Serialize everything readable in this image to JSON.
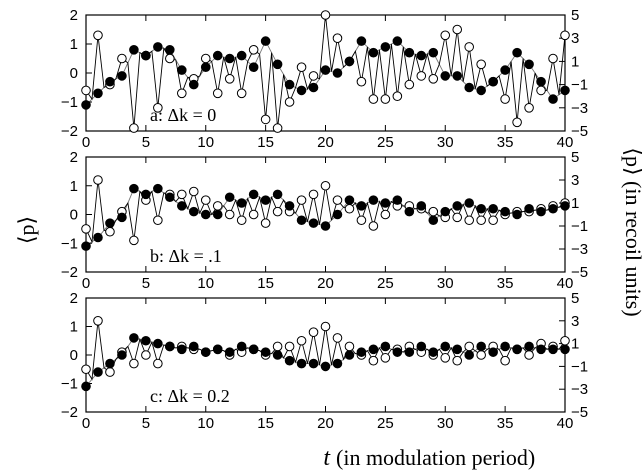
{
  "chart_data": {
    "type": "line",
    "xlabel_symbol": "t",
    "xlabel": "(in modulation period)",
    "ylabel_left": "⟨p⟩",
    "ylabel_right": "⟨p⟩ (in recoil units)",
    "xlim": [
      0,
      40
    ],
    "x_ticks": [
      0,
      5,
      10,
      15,
      20,
      25,
      30,
      35,
      40
    ],
    "grid": false,
    "legend": "none",
    "panels": [
      {
        "label_prefix": "a:",
        "label_math": "Δk = 0",
        "ylim_left": [
          -2,
          2
        ],
        "yticks_left": [
          -2,
          -1,
          0,
          1,
          2
        ],
        "ylim_right": [
          -5,
          5
        ],
        "yticks_right": [
          -5,
          -3,
          -1,
          1,
          3,
          5
        ],
        "series": [
          {
            "marker": "open",
            "x": [
              0,
              1,
              2,
              3,
              4,
              5,
              6,
              7,
              8,
              9,
              10,
              11,
              12,
              13,
              14,
              15,
              16,
              17,
              18,
              19,
              20,
              21,
              22,
              23,
              24,
              25,
              26,
              27,
              28,
              29,
              30,
              31,
              32,
              33,
              34,
              35,
              36,
              37,
              38,
              39,
              40
            ],
            "y": [
              -0.6,
              1.3,
              -0.4,
              0.5,
              -1.9,
              0.6,
              -1.2,
              0.5,
              -0.7,
              -0.2,
              0.5,
              -0.7,
              -0.2,
              -0.7,
              0.8,
              -1.6,
              -1.9,
              -1.0,
              0.2,
              -0.1,
              2.0,
              1.2,
              0.4,
              -0.3,
              -0.9,
              -0.9,
              -0.8,
              -0.4,
              -0.1,
              -0.2,
              1.3,
              1.5,
              0.9,
              0.3,
              -0.3,
              -0.9,
              -1.7,
              -1.2,
              -0.6,
              0.5,
              1.3
            ]
          },
          {
            "marker": "filled",
            "x": [
              0,
              1,
              2,
              3,
              4,
              5,
              6,
              7,
              8,
              9,
              10,
              11,
              12,
              13,
              14,
              15,
              16,
              17,
              18,
              19,
              20,
              21,
              22,
              23,
              24,
              25,
              26,
              27,
              28,
              29,
              30,
              31,
              32,
              33,
              34,
              35,
              36,
              37,
              38,
              39,
              40
            ],
            "y": [
              -1.1,
              -0.7,
              -0.3,
              -0.1,
              0.8,
              0.6,
              0.9,
              0.8,
              0.1,
              -0.4,
              0.2,
              0.6,
              0.5,
              0.6,
              0.2,
              1.1,
              0.3,
              -0.4,
              -0.6,
              -0.5,
              0.1,
              0.0,
              0.4,
              1.1,
              0.7,
              0.9,
              1.1,
              0.7,
              0.6,
              0.7,
              -0.1,
              -0.1,
              -0.5,
              -0.6,
              -0.3,
              0.1,
              0.7,
              0.3,
              -0.3,
              -0.9,
              -0.6
            ]
          }
        ]
      },
      {
        "label_prefix": "b:",
        "label_math": "Δk = .1",
        "ylim_left": [
          -2,
          2
        ],
        "yticks_left": [
          -2,
          -1,
          0,
          1,
          2
        ],
        "ylim_right": [
          -5,
          5
        ],
        "yticks_right": [
          -5,
          -3,
          -1,
          1,
          3,
          5
        ],
        "series": [
          {
            "marker": "open",
            "x": [
              0,
              1,
              2,
              3,
              4,
              5,
              6,
              7,
              8,
              9,
              10,
              11,
              12,
              13,
              14,
              15,
              16,
              17,
              18,
              19,
              20,
              21,
              22,
              23,
              24,
              25,
              26,
              27,
              28,
              29,
              30,
              31,
              32,
              33,
              34,
              35,
              36,
              37,
              38,
              39,
              40
            ],
            "y": [
              -0.5,
              1.2,
              -0.6,
              0.1,
              -0.9,
              0.5,
              -0.2,
              0.7,
              0.7,
              0.8,
              0.5,
              0.3,
              0.0,
              -0.2,
              0.0,
              -0.3,
              0.1,
              0.1,
              0.5,
              0.7,
              1.0,
              0.5,
              0.2,
              -0.2,
              -0.4,
              0.0,
              0.3,
              0.3,
              0.2,
              0.1,
              -0.1,
              -0.1,
              -0.2,
              -0.2,
              -0.2,
              0.0,
              0.1,
              0.1,
              0.2,
              0.3,
              0.4
            ]
          },
          {
            "marker": "filled",
            "x": [
              0,
              1,
              2,
              3,
              4,
              5,
              6,
              7,
              8,
              9,
              10,
              11,
              12,
              13,
              14,
              15,
              16,
              17,
              18,
              19,
              20,
              21,
              22,
              23,
              24,
              25,
              26,
              27,
              28,
              29,
              30,
              31,
              32,
              33,
              34,
              35,
              36,
              37,
              38,
              39,
              40
            ],
            "y": [
              -1.1,
              -0.8,
              -0.3,
              -0.1,
              0.9,
              0.7,
              0.9,
              0.6,
              0.3,
              0.1,
              0.0,
              0.0,
              0.6,
              0.4,
              0.7,
              0.5,
              0.7,
              0.3,
              -0.2,
              -0.3,
              -0.4,
              0.0,
              0.5,
              0.3,
              0.5,
              0.4,
              0.5,
              0.1,
              0.3,
              -0.2,
              0.1,
              0.3,
              0.4,
              0.2,
              0.2,
              0.1,
              0.0,
              0.2,
              0.1,
              0.2,
              0.3
            ]
          }
        ]
      },
      {
        "label_prefix": "c:",
        "label_math": "Δk = 0.2",
        "ylim_left": [
          -2,
          2
        ],
        "yticks_left": [
          -2,
          -1,
          0,
          1,
          2
        ],
        "ylim_right": [
          -5,
          5
        ],
        "yticks_right": [
          -5,
          -3,
          -1,
          1,
          3,
          5
        ],
        "series": [
          {
            "marker": "open",
            "x": [
              0,
              1,
              2,
              3,
              4,
              5,
              6,
              7,
              8,
              9,
              10,
              11,
              12,
              13,
              14,
              15,
              16,
              17,
              18,
              19,
              20,
              21,
              22,
              23,
              24,
              25,
              26,
              27,
              28,
              29,
              30,
              31,
              32,
              33,
              34,
              35,
              36,
              37,
              38,
              39,
              40
            ],
            "y": [
              -0.5,
              1.2,
              -0.6,
              0.1,
              -0.3,
              0.0,
              -0.3,
              0.3,
              0.3,
              0.2,
              0.1,
              0.2,
              0.0,
              0.1,
              0.2,
              0.0,
              0.3,
              0.3,
              0.5,
              0.8,
              1.0,
              0.6,
              0.3,
              0.0,
              -0.2,
              -0.1,
              0.2,
              0.3,
              0.1,
              0.0,
              -0.1,
              -0.2,
              0.3,
              0.0,
              0.3,
              -0.2,
              0.2,
              0.0,
              0.4,
              0.3,
              0.5
            ]
          },
          {
            "marker": "filled",
            "x": [
              0,
              1,
              2,
              3,
              4,
              5,
              6,
              7,
              8,
              9,
              10,
              11,
              12,
              13,
              14,
              15,
              16,
              17,
              18,
              19,
              20,
              21,
              22,
              23,
              24,
              25,
              26,
              27,
              28,
              29,
              30,
              31,
              32,
              33,
              34,
              35,
              36,
              37,
              38,
              39,
              40
            ],
            "y": [
              -1.1,
              -0.6,
              -0.3,
              0.0,
              0.6,
              0.5,
              0.4,
              0.3,
              0.2,
              0.3,
              0.1,
              0.2,
              0.1,
              0.3,
              0.2,
              0.1,
              0.0,
              -0.2,
              -0.3,
              -0.3,
              -0.4,
              -0.3,
              0.0,
              0.1,
              0.2,
              0.3,
              0.1,
              0.1,
              0.3,
              0.1,
              0.3,
              0.2,
              0.0,
              0.3,
              0.1,
              0.3,
              0.2,
              0.3,
              0.2,
              0.2,
              0.2
            ]
          }
        ]
      }
    ]
  }
}
